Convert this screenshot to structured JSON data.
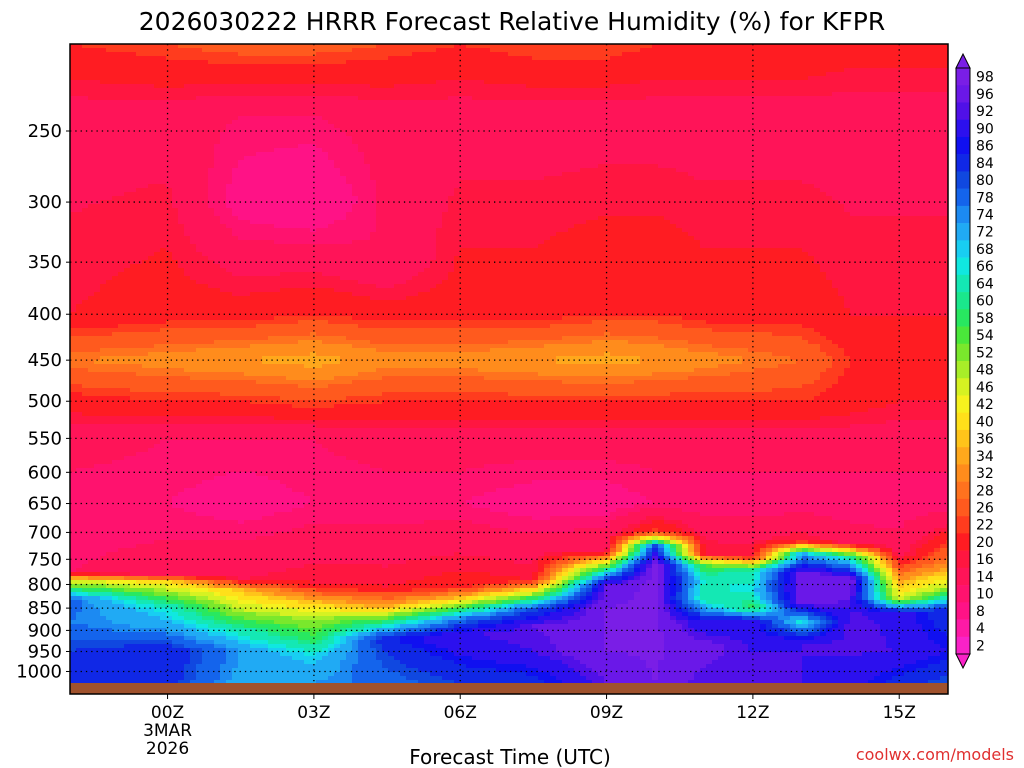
{
  "chart_data": {
    "type": "heatmap",
    "title": "2026030222 HRRR Forecast Relative Humidity (%) for KFPR",
    "xlabel": "Forecast Time (UTC)",
    "ylabel": "",
    "x_ticks": [
      {
        "label": "00Z",
        "sub": [
          "3MAR",
          "2026"
        ],
        "hour": 0
      },
      {
        "label": "03Z",
        "hour": 3
      },
      {
        "label": "06Z",
        "hour": 6
      },
      {
        "label": "09Z",
        "hour": 9
      },
      {
        "label": "12Z",
        "hour": 12
      },
      {
        "label": "15Z",
        "hour": 15
      }
    ],
    "x_range_hours": [
      -2,
      16
    ],
    "y_scale": "log-pressure",
    "y_range_hPa": [
      1030,
      200
    ],
    "y_ticks": [
      250,
      300,
      350,
      400,
      450,
      500,
      550,
      600,
      650,
      700,
      750,
      800,
      850,
      900,
      950,
      1000
    ],
    "grid": true,
    "colorbar": {
      "labels": [
        98,
        96,
        92,
        90,
        86,
        84,
        80,
        78,
        74,
        72,
        68,
        66,
        64,
        60,
        58,
        54,
        52,
        48,
        46,
        42,
        40,
        36,
        34,
        32,
        28,
        26,
        22,
        20,
        16,
        14,
        10,
        8,
        4,
        2
      ],
      "colors": [
        "#7a1ee6",
        "#6a18e8",
        "#5010e8",
        "#2c10ee",
        "#1010f0",
        "#1028e6",
        "#1048e0",
        "#1464ec",
        "#1c8af2",
        "#20aaf4",
        "#18cef2",
        "#10e8e0",
        "#14e8b4",
        "#1ae88c",
        "#28e860",
        "#4ae83a",
        "#7ae82c",
        "#a8ee28",
        "#d6f222",
        "#f6f21e",
        "#ffe01a",
        "#ffc41a",
        "#ffa81c",
        "#ff8c1c",
        "#ff721e",
        "#ff5a1e",
        "#ff3c1e",
        "#ff1c22",
        "#ff1640",
        "#ff1458",
        "#ff126e",
        "#ff1286",
        "#fe1aa6",
        "#fa22c8"
      ]
    },
    "profiles": [
      {
        "hour": -2,
        "rh": [
          {
            "p": 200,
            "v": 20
          },
          {
            "p": 240,
            "v": 12
          },
          {
            "p": 400,
            "v": 16
          },
          {
            "p": 450,
            "v": 28
          },
          {
            "p": 500,
            "v": 18
          },
          {
            "p": 550,
            "v": 12
          },
          {
            "p": 650,
            "v": 8
          },
          {
            "p": 775,
            "v": 10
          },
          {
            "p": 790,
            "v": 40
          },
          {
            "p": 830,
            "v": 76
          },
          {
            "p": 880,
            "v": 74
          },
          {
            "p": 950,
            "v": 80
          },
          {
            "p": 1030,
            "v": 82
          }
        ]
      },
      {
        "hour": 0,
        "rh": [
          {
            "p": 200,
            "v": 22
          },
          {
            "p": 240,
            "v": 12
          },
          {
            "p": 400,
            "v": 18
          },
          {
            "p": 450,
            "v": 30
          },
          {
            "p": 500,
            "v": 20
          },
          {
            "p": 550,
            "v": 10
          },
          {
            "p": 650,
            "v": 8
          },
          {
            "p": 780,
            "v": 12
          },
          {
            "p": 795,
            "v": 38
          },
          {
            "p": 850,
            "v": 64
          },
          {
            "p": 900,
            "v": 72
          },
          {
            "p": 950,
            "v": 84
          },
          {
            "p": 1030,
            "v": 82
          }
        ]
      },
      {
        "hour": 1.5,
        "rh": [
          {
            "p": 200,
            "v": 24
          },
          {
            "p": 240,
            "v": 10
          },
          {
            "p": 300,
            "v": 6
          },
          {
            "p": 400,
            "v": 18
          },
          {
            "p": 450,
            "v": 32
          },
          {
            "p": 500,
            "v": 20
          },
          {
            "p": 550,
            "v": 10
          },
          {
            "p": 650,
            "v": 6
          },
          {
            "p": 790,
            "v": 14
          },
          {
            "p": 810,
            "v": 34
          },
          {
            "p": 860,
            "v": 48
          },
          {
            "p": 900,
            "v": 62
          },
          {
            "p": 950,
            "v": 72
          },
          {
            "p": 1030,
            "v": 70
          }
        ]
      },
      {
        "hour": 3,
        "rh": [
          {
            "p": 200,
            "v": 24
          },
          {
            "p": 240,
            "v": 10
          },
          {
            "p": 300,
            "v": 4
          },
          {
            "p": 400,
            "v": 20
          },
          {
            "p": 450,
            "v": 34
          },
          {
            "p": 500,
            "v": 22
          },
          {
            "p": 550,
            "v": 10
          },
          {
            "p": 650,
            "v": 8
          },
          {
            "p": 800,
            "v": 16
          },
          {
            "p": 830,
            "v": 32
          },
          {
            "p": 870,
            "v": 46
          },
          {
            "p": 920,
            "v": 56
          },
          {
            "p": 960,
            "v": 66
          },
          {
            "p": 1030,
            "v": 72
          }
        ]
      },
      {
        "hour": 4.5,
        "rh": [
          {
            "p": 200,
            "v": 22
          },
          {
            "p": 240,
            "v": 12
          },
          {
            "p": 350,
            "v": 10
          },
          {
            "p": 400,
            "v": 18
          },
          {
            "p": 450,
            "v": 30
          },
          {
            "p": 500,
            "v": 20
          },
          {
            "p": 550,
            "v": 12
          },
          {
            "p": 650,
            "v": 8
          },
          {
            "p": 805,
            "v": 16
          },
          {
            "p": 845,
            "v": 32
          },
          {
            "p": 880,
            "v": 58
          },
          {
            "p": 920,
            "v": 84
          },
          {
            "p": 960,
            "v": 80
          },
          {
            "p": 1030,
            "v": 76
          }
        ]
      },
      {
        "hour": 6,
        "rh": [
          {
            "p": 200,
            "v": 20
          },
          {
            "p": 240,
            "v": 12
          },
          {
            "p": 400,
            "v": 18
          },
          {
            "p": 450,
            "v": 30
          },
          {
            "p": 500,
            "v": 20
          },
          {
            "p": 550,
            "v": 12
          },
          {
            "p": 650,
            "v": 8
          },
          {
            "p": 805,
            "v": 18
          },
          {
            "p": 835,
            "v": 40
          },
          {
            "p": 870,
            "v": 72
          },
          {
            "p": 910,
            "v": 90
          },
          {
            "p": 960,
            "v": 86
          },
          {
            "p": 1030,
            "v": 80
          }
        ]
      },
      {
        "hour": 7.5,
        "rh": [
          {
            "p": 200,
            "v": 22
          },
          {
            "p": 240,
            "v": 12
          },
          {
            "p": 400,
            "v": 18
          },
          {
            "p": 450,
            "v": 32
          },
          {
            "p": 500,
            "v": 20
          },
          {
            "p": 550,
            "v": 12
          },
          {
            "p": 650,
            "v": 6
          },
          {
            "p": 790,
            "v": 16
          },
          {
            "p": 815,
            "v": 42
          },
          {
            "p": 850,
            "v": 78
          },
          {
            "p": 890,
            "v": 92
          },
          {
            "p": 950,
            "v": 90
          },
          {
            "p": 1030,
            "v": 82
          }
        ]
      },
      {
        "hour": 9,
        "rh": [
          {
            "p": 200,
            "v": 22
          },
          {
            "p": 240,
            "v": 12
          },
          {
            "p": 400,
            "v": 20
          },
          {
            "p": 450,
            "v": 34
          },
          {
            "p": 500,
            "v": 20
          },
          {
            "p": 550,
            "v": 12
          },
          {
            "p": 650,
            "v": 6
          },
          {
            "p": 735,
            "v": 14
          },
          {
            "p": 770,
            "v": 60
          },
          {
            "p": 800,
            "v": 92
          },
          {
            "p": 850,
            "v": 96
          },
          {
            "p": 950,
            "v": 96
          },
          {
            "p": 1030,
            "v": 92
          }
        ]
      },
      {
        "hour": 10,
        "rh": [
          {
            "p": 200,
            "v": 20
          },
          {
            "p": 240,
            "v": 12
          },
          {
            "p": 400,
            "v": 20
          },
          {
            "p": 450,
            "v": 32
          },
          {
            "p": 500,
            "v": 20
          },
          {
            "p": 550,
            "v": 12
          },
          {
            "p": 650,
            "v": 8
          },
          {
            "p": 700,
            "v": 22
          },
          {
            "p": 725,
            "v": 80
          },
          {
            "p": 760,
            "v": 98
          },
          {
            "p": 1030,
            "v": 96
          }
        ]
      },
      {
        "hour": 11,
        "rh": [
          {
            "p": 200,
            "v": 20
          },
          {
            "p": 240,
            "v": 12
          },
          {
            "p": 400,
            "v": 18
          },
          {
            "p": 450,
            "v": 30
          },
          {
            "p": 500,
            "v": 20
          },
          {
            "p": 550,
            "v": 12
          },
          {
            "p": 650,
            "v": 8
          },
          {
            "p": 740,
            "v": 16
          },
          {
            "p": 760,
            "v": 52
          },
          {
            "p": 790,
            "v": 64
          },
          {
            "p": 830,
            "v": 60
          },
          {
            "p": 880,
            "v": 86
          },
          {
            "p": 940,
            "v": 94
          },
          {
            "p": 1030,
            "v": 90
          }
        ]
      },
      {
        "hour": 12,
        "rh": [
          {
            "p": 200,
            "v": 20
          },
          {
            "p": 240,
            "v": 12
          },
          {
            "p": 400,
            "v": 18
          },
          {
            "p": 450,
            "v": 28
          },
          {
            "p": 500,
            "v": 20
          },
          {
            "p": 550,
            "v": 12
          },
          {
            "p": 650,
            "v": 8
          },
          {
            "p": 745,
            "v": 16
          },
          {
            "p": 770,
            "v": 60
          },
          {
            "p": 810,
            "v": 66
          },
          {
            "p": 850,
            "v": 56
          },
          {
            "p": 880,
            "v": 88
          },
          {
            "p": 1030,
            "v": 92
          }
        ]
      },
      {
        "hour": 13,
        "rh": [
          {
            "p": 200,
            "v": 20
          },
          {
            "p": 240,
            "v": 12
          },
          {
            "p": 400,
            "v": 18
          },
          {
            "p": 450,
            "v": 26
          },
          {
            "p": 500,
            "v": 20
          },
          {
            "p": 550,
            "v": 12
          },
          {
            "p": 650,
            "v": 8
          },
          {
            "p": 715,
            "v": 16
          },
          {
            "p": 740,
            "v": 70
          },
          {
            "p": 780,
            "v": 96
          },
          {
            "p": 840,
            "v": 94
          },
          {
            "p": 880,
            "v": 64
          },
          {
            "p": 930,
            "v": 90
          },
          {
            "p": 1030,
            "v": 90
          }
        ]
      },
      {
        "hour": 14,
        "rh": [
          {
            "p": 200,
            "v": 18
          },
          {
            "p": 240,
            "v": 12
          },
          {
            "p": 400,
            "v": 16
          },
          {
            "p": 450,
            "v": 20
          },
          {
            "p": 500,
            "v": 18
          },
          {
            "p": 550,
            "v": 12
          },
          {
            "p": 650,
            "v": 8
          },
          {
            "p": 720,
            "v": 12
          },
          {
            "p": 745,
            "v": 60
          },
          {
            "p": 790,
            "v": 96
          },
          {
            "p": 850,
            "v": 90
          },
          {
            "p": 900,
            "v": 92
          },
          {
            "p": 1030,
            "v": 88
          }
        ]
      },
      {
        "hour": 15,
        "rh": [
          {
            "p": 200,
            "v": 18
          },
          {
            "p": 240,
            "v": 12
          },
          {
            "p": 400,
            "v": 16
          },
          {
            "p": 450,
            "v": 18
          },
          {
            "p": 500,
            "v": 16
          },
          {
            "p": 550,
            "v": 12
          },
          {
            "p": 650,
            "v": 8
          },
          {
            "p": 740,
            "v": 12
          },
          {
            "p": 780,
            "v": 28
          },
          {
            "p": 830,
            "v": 44
          },
          {
            "p": 860,
            "v": 88
          },
          {
            "p": 950,
            "v": 90
          },
          {
            "p": 1030,
            "v": 82
          }
        ]
      },
      {
        "hour": 16,
        "rh": [
          {
            "p": 200,
            "v": 18
          },
          {
            "p": 240,
            "v": 12
          },
          {
            "p": 400,
            "v": 16
          },
          {
            "p": 450,
            "v": 18
          },
          {
            "p": 500,
            "v": 16
          },
          {
            "p": 550,
            "v": 12
          },
          {
            "p": 650,
            "v": 8
          },
          {
            "p": 700,
            "v": 16
          },
          {
            "p": 760,
            "v": 30
          },
          {
            "p": 810,
            "v": 48
          },
          {
            "p": 850,
            "v": 80
          },
          {
            "p": 950,
            "v": 86
          },
          {
            "p": 1030,
            "v": 78
          }
        ]
      }
    ]
  },
  "watermark": "coolwx.com/models"
}
